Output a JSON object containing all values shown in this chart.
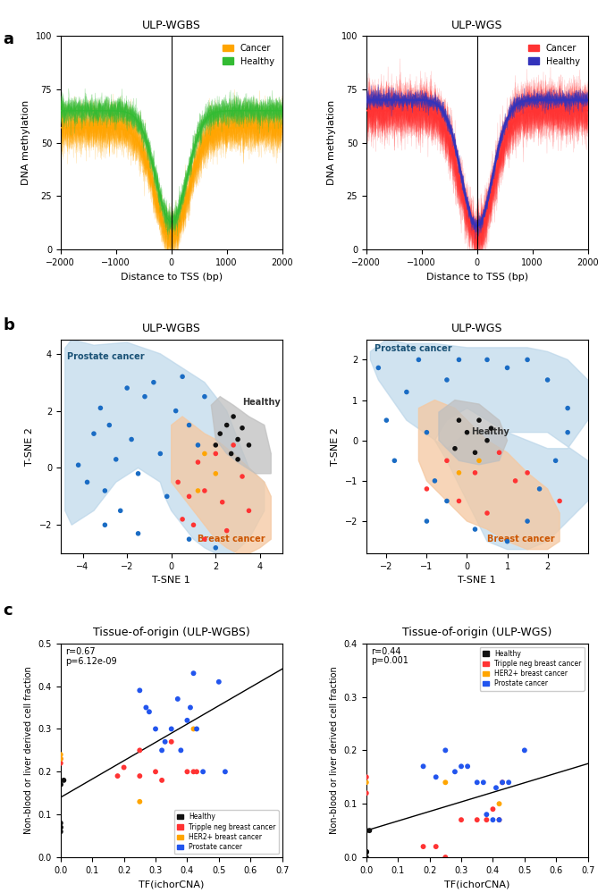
{
  "panel_a_left": {
    "title": "ULP-WGBS",
    "xlabel": "Distance to TSS (bp)",
    "ylabel": "DNA methylation",
    "cancer_color": "#FFA500",
    "healthy_color": "#33BB33",
    "x_range": [
      -2000,
      2000
    ],
    "y_range": [
      0,
      100
    ],
    "xticks": [
      -2000,
      -1000,
      0,
      1000,
      2000
    ]
  },
  "panel_a_right": {
    "title": "ULP-WGS",
    "xlabel": "Distance to TSS (bp)",
    "ylabel": "DNA methylation",
    "cancer_color": "#FF3333",
    "healthy_color": "#3333BB",
    "x_range": [
      -2000,
      2000
    ],
    "y_range": [
      0,
      100
    ],
    "xticks": [
      -2000,
      -1000,
      0,
      1000,
      2000
    ]
  },
  "panel_b_left": {
    "title": "ULP-WGBS",
    "xlabel": "T-SNE 1",
    "ylabel": "T-SNE 2",
    "x_range": [
      -5,
      5
    ],
    "y_range": [
      -3,
      4.5
    ],
    "xticks": [
      -4,
      -2,
      0,
      2,
      4
    ],
    "yticks": [
      -2,
      0,
      2,
      4
    ],
    "prostate_dots": [
      [
        -4.2,
        0.1
      ],
      [
        -3.8,
        -0.5
      ],
      [
        -3.5,
        1.2
      ],
      [
        -3.2,
        2.1
      ],
      [
        -3.0,
        -0.8
      ],
      [
        -2.8,
        1.5
      ],
      [
        -2.5,
        0.3
      ],
      [
        -2.3,
        -1.5
      ],
      [
        -2.0,
        2.8
      ],
      [
        -1.8,
        1.0
      ],
      [
        -1.5,
        -0.2
      ],
      [
        -1.2,
        2.5
      ],
      [
        -0.8,
        3.0
      ],
      [
        -0.5,
        0.5
      ],
      [
        -0.2,
        -1.0
      ],
      [
        0.2,
        2.0
      ],
      [
        0.5,
        3.2
      ],
      [
        0.8,
        1.5
      ],
      [
        1.2,
        0.8
      ],
      [
        1.5,
        2.5
      ],
      [
        -3.0,
        -2.0
      ],
      [
        -1.5,
        -2.3
      ],
      [
        0.8,
        -2.5
      ],
      [
        2.0,
        -2.8
      ]
    ],
    "breast_dots": [
      [
        0.3,
        -0.5
      ],
      [
        0.8,
        -1.0
      ],
      [
        1.2,
        0.2
      ],
      [
        1.5,
        -0.8
      ],
      [
        2.0,
        0.5
      ],
      [
        2.3,
        -1.2
      ],
      [
        2.8,
        0.8
      ],
      [
        3.2,
        -0.3
      ],
      [
        3.5,
        -1.5
      ],
      [
        1.0,
        -2.0
      ],
      [
        1.5,
        -2.5
      ],
      [
        2.5,
        -2.2
      ],
      [
        0.5,
        -1.8
      ]
    ],
    "healthy_dots": [
      [
        2.2,
        1.2
      ],
      [
        2.5,
        1.5
      ],
      [
        2.8,
        1.8
      ],
      [
        3.0,
        1.0
      ],
      [
        3.2,
        1.4
      ],
      [
        3.5,
        0.8
      ],
      [
        2.7,
        0.5
      ],
      [
        2.0,
        0.8
      ],
      [
        3.0,
        0.3
      ]
    ],
    "orange_dots": [
      [
        1.5,
        0.5
      ],
      [
        2.0,
        -0.2
      ],
      [
        1.2,
        -0.8
      ]
    ]
  },
  "panel_b_right": {
    "title": "ULP-WGS",
    "xlabel": "T-SNE 1",
    "ylabel": "T-SNE 2",
    "x_range": [
      -2.5,
      3.0
    ],
    "y_range": [
      -2.8,
      2.5
    ],
    "xticks": [
      -2,
      -1,
      0,
      1,
      2
    ],
    "yticks": [
      -2,
      -1,
      0,
      1,
      2
    ],
    "prostate_dots": [
      [
        -2.2,
        1.8
      ],
      [
        -2.0,
        0.5
      ],
      [
        -1.8,
        -0.5
      ],
      [
        -1.5,
        1.2
      ],
      [
        -1.2,
        2.0
      ],
      [
        -1.0,
        0.2
      ],
      [
        -0.8,
        -1.0
      ],
      [
        -0.5,
        1.5
      ],
      [
        -0.2,
        2.0
      ],
      [
        0.5,
        2.0
      ],
      [
        1.0,
        1.8
      ],
      [
        1.5,
        2.0
      ],
      [
        2.0,
        1.5
      ],
      [
        2.5,
        0.8
      ],
      [
        2.2,
        -0.5
      ],
      [
        1.8,
        -1.2
      ],
      [
        1.5,
        -2.0
      ],
      [
        -0.5,
        -1.5
      ],
      [
        -1.0,
        -2.0
      ],
      [
        0.2,
        -2.2
      ],
      [
        1.0,
        -2.5
      ],
      [
        2.5,
        0.2
      ]
    ],
    "breast_dots": [
      [
        -0.5,
        -0.5
      ],
      [
        -0.2,
        -1.5
      ],
      [
        0.2,
        -0.8
      ],
      [
        0.5,
        -1.8
      ],
      [
        0.8,
        -0.3
      ],
      [
        1.2,
        -1.0
      ],
      [
        1.5,
        -0.8
      ],
      [
        -1.0,
        -1.2
      ],
      [
        2.3,
        -1.5
      ]
    ],
    "healthy_dots": [
      [
        0.0,
        0.2
      ],
      [
        0.3,
        0.5
      ],
      [
        -0.2,
        0.5
      ],
      [
        0.5,
        0.0
      ],
      [
        -0.3,
        -0.2
      ],
      [
        0.2,
        -0.3
      ],
      [
        0.6,
        0.3
      ]
    ],
    "orange_dots": [
      [
        0.3,
        -0.5
      ],
      [
        -0.2,
        -0.8
      ]
    ],
    "dark_dot": [
      2.3,
      -1.5
    ]
  },
  "panel_c_left": {
    "title": "Tissue-of-origin (ULP-WGBS)",
    "xlabel": "TF(ichorCNA)",
    "ylabel": "Non-blood or liver derived cell fraction",
    "x_range": [
      0.0,
      0.7
    ],
    "y_range": [
      0.0,
      0.5
    ],
    "r_text": "r=0.67",
    "p_text_raw": "p=6.12e-09",
    "line_x": [
      0.0,
      0.7
    ],
    "line_y": [
      0.14,
      0.44
    ],
    "healthy_x": [
      0.0,
      0.0,
      0.0,
      0.0,
      0.0,
      0.0,
      0.01
    ],
    "healthy_y": [
      0.17,
      0.17,
      0.08,
      0.07,
      0.07,
      0.06,
      0.18
    ],
    "red_x": [
      0.0,
      0.0,
      0.18,
      0.2,
      0.25,
      0.25,
      0.3,
      0.32,
      0.35,
      0.4,
      0.42,
      0.43
    ],
    "red_y": [
      0.22,
      0.23,
      0.19,
      0.21,
      0.25,
      0.19,
      0.2,
      0.18,
      0.27,
      0.2,
      0.2,
      0.2
    ],
    "orange_x": [
      0.0,
      0.0,
      0.25,
      0.42
    ],
    "orange_y": [
      0.24,
      0.23,
      0.13,
      0.3
    ],
    "blue_x": [
      0.25,
      0.27,
      0.28,
      0.3,
      0.32,
      0.33,
      0.35,
      0.37,
      0.38,
      0.4,
      0.41,
      0.42,
      0.43,
      0.45,
      0.5,
      0.52
    ],
    "blue_y": [
      0.39,
      0.35,
      0.34,
      0.3,
      0.25,
      0.27,
      0.3,
      0.37,
      0.25,
      0.32,
      0.35,
      0.43,
      0.3,
      0.2,
      0.41,
      0.2
    ]
  },
  "panel_c_right": {
    "title": "Tissue-of-origin (ULP-WGS)",
    "xlabel": "TF(ichorCNA)",
    "ylabel": "Non-blood or liver derived cell fraction",
    "x_range": [
      0.0,
      0.7
    ],
    "y_range": [
      0.0,
      0.4
    ],
    "r_text": "r=0.44",
    "p_text": "p=0.001",
    "line_x": [
      0.0,
      0.7
    ],
    "line_y": [
      0.05,
      0.175
    ],
    "healthy_x": [
      0.0,
      0.0,
      0.0,
      0.0,
      0.0,
      0.0,
      0.01
    ],
    "healthy_y": [
      0.05,
      0.01,
      0.01,
      0.01,
      0.01,
      0.0,
      0.05
    ],
    "red_x": [
      0.0,
      0.0,
      0.18,
      0.22,
      0.25,
      0.3,
      0.35,
      0.38,
      0.4,
      0.42,
      0.43
    ],
    "red_y": [
      0.12,
      0.15,
      0.02,
      0.02,
      0.0,
      0.07,
      0.07,
      0.07,
      0.09,
      0.07,
      0.14
    ],
    "orange_x": [
      0.0,
      0.25,
      0.42
    ],
    "orange_y": [
      0.14,
      0.14,
      0.1
    ],
    "blue_x": [
      0.18,
      0.22,
      0.25,
      0.28,
      0.3,
      0.32,
      0.35,
      0.37,
      0.38,
      0.4,
      0.41,
      0.42,
      0.43,
      0.45,
      0.5
    ],
    "blue_y": [
      0.17,
      0.15,
      0.2,
      0.16,
      0.17,
      0.17,
      0.14,
      0.14,
      0.08,
      0.07,
      0.13,
      0.07,
      0.14,
      0.14,
      0.2
    ]
  }
}
